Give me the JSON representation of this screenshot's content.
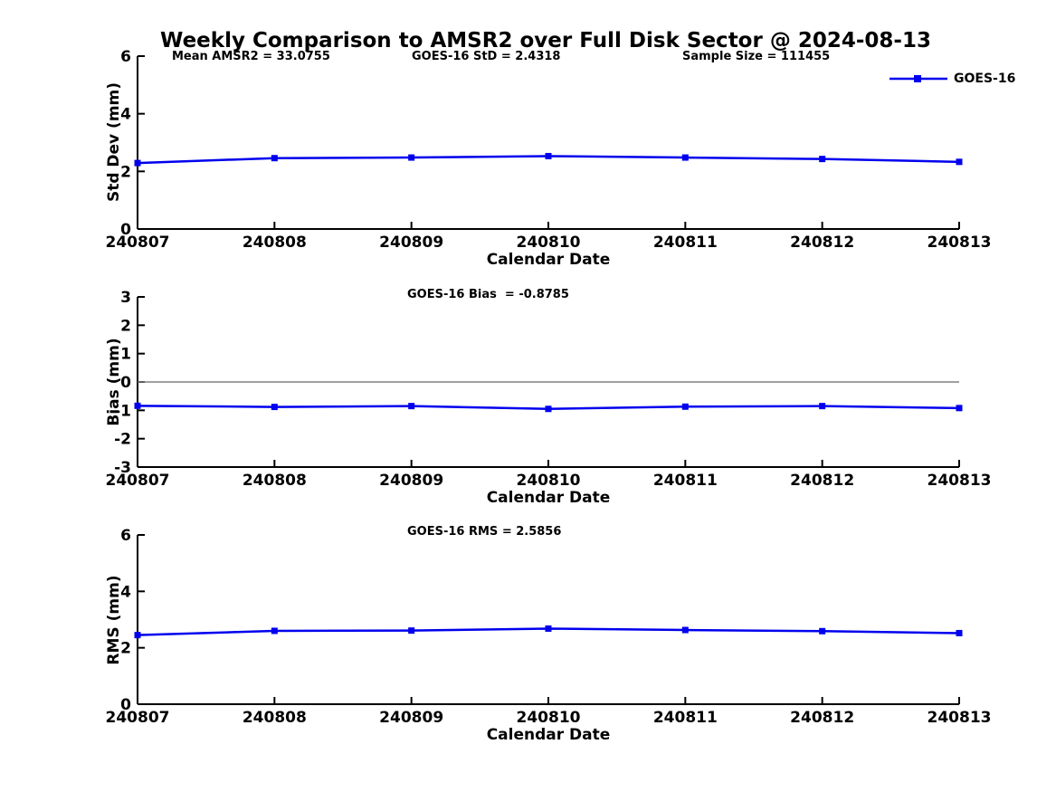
{
  "title": "Weekly Comparison to AMSR2 over Full Disk Sector @ 2024-08-13",
  "colors": {
    "series": "#0000ee",
    "zero_line": "#808080",
    "axis": "#000000",
    "text": "#000000"
  },
  "chart_data": [
    {
      "type": "line",
      "name": "std-dev-vs-date",
      "annotations": [
        "Mean AMSR2 = 33.0755",
        "GOES-16 StD = 2.4318",
        "Sample Size = 111455"
      ],
      "xlabel": "Calendar Date",
      "ylabel": "Std Dev (mm)",
      "x": [
        "240807",
        "240808",
        "240809",
        "240810",
        "240811",
        "240812",
        "240813"
      ],
      "series": [
        {
          "name": "GOES-16",
          "values": [
            2.29,
            2.46,
            2.48,
            2.53,
            2.48,
            2.43,
            2.33
          ]
        }
      ],
      "ylim": [
        0,
        6
      ],
      "yticks": [
        0,
        2,
        4,
        6
      ],
      "zero_line": false,
      "grid": false,
      "legend_position": "upper-right-outside",
      "marker": "square"
    },
    {
      "type": "line",
      "name": "bias-vs-date",
      "annotations": [
        "GOES-16 Bias  = -0.8785"
      ],
      "xlabel": "Calendar Date",
      "ylabel": "Bias (mm)",
      "x": [
        "240807",
        "240808",
        "240809",
        "240810",
        "240811",
        "240812",
        "240813"
      ],
      "series": [
        {
          "name": "GOES-16",
          "values": [
            -0.84,
            -0.88,
            -0.85,
            -0.95,
            -0.87,
            -0.85,
            -0.92
          ]
        }
      ],
      "ylim": [
        -3,
        3
      ],
      "yticks": [
        -3,
        -2,
        -1,
        0,
        1,
        2,
        3
      ],
      "zero_line": true,
      "grid": false,
      "marker": "square"
    },
    {
      "type": "line",
      "name": "rms-vs-date",
      "annotations": [
        "GOES-16 RMS = 2.5856"
      ],
      "xlabel": "Calendar Date",
      "ylabel": "RMS (mm)",
      "x": [
        "240807",
        "240808",
        "240809",
        "240810",
        "240811",
        "240812",
        "240813"
      ],
      "series": [
        {
          "name": "GOES-16",
          "values": [
            2.45,
            2.6,
            2.61,
            2.68,
            2.63,
            2.59,
            2.52
          ]
        }
      ],
      "ylim": [
        0,
        6
      ],
      "yticks": [
        0,
        2,
        4,
        6
      ],
      "zero_line": false,
      "grid": false,
      "marker": "square"
    }
  ]
}
